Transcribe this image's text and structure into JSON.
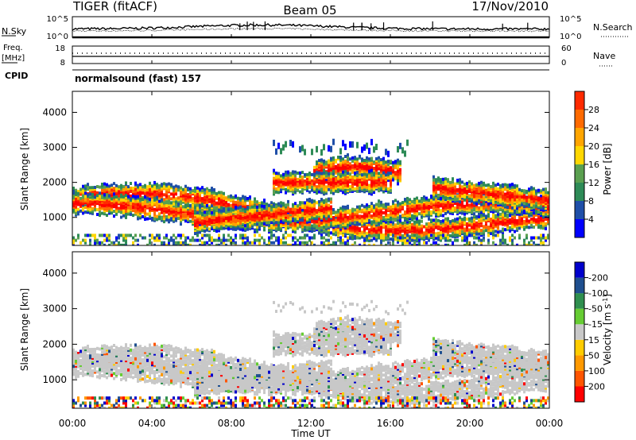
{
  "header": {
    "station": "TIGER (fitACF)",
    "beam": "Beam 05",
    "date": "17/Nov/2010"
  },
  "panels": {
    "nsky_label": "N.Sky",
    "nsky_ticks": [
      "10^5",
      "10^0"
    ],
    "nsearch_label": "N.Search",
    "nsearch_ticks": [
      "10^5",
      "10^0"
    ],
    "freq_label": "Freq.",
    "freq_unit": "[MHz]",
    "freq_ticks": [
      "18",
      "8"
    ],
    "nave_label": "Nave",
    "nave_ticks": [
      "60",
      "0"
    ],
    "cpid_label": "CPID",
    "cpid_value": "normalsound (fast) 157"
  },
  "colors": {
    "power": [
      "#0000ff",
      "#1f4fa8",
      "#2e8b57",
      "#5aa050",
      "#ffd700",
      "#ffa500",
      "#ff6a00",
      "#ff2a00",
      "#ff0000"
    ],
    "velocity": [
      "#0000cc",
      "#1f4f8f",
      "#2f8f4f",
      "#66cc33",
      "#c8c8c8",
      "#ffcc00",
      "#ff9900",
      "#ff5500",
      "#ff0000"
    ],
    "gray": "#c8c8c8"
  },
  "chart_data": [
    {
      "type": "line",
      "title": "N.Sky / N.Search",
      "ylim_label": [
        "10^0",
        "10^5"
      ],
      "series": [
        {
          "name": "N.Sky"
        },
        {
          "name": "N.Search"
        }
      ]
    },
    {
      "type": "line",
      "series": [
        {
          "name": "Freq. [MHz]",
          "ylim": [
            8,
            18
          ]
        },
        {
          "name": "Nave",
          "ylim": [
            0,
            60
          ]
        }
      ]
    },
    {
      "type": "heatmap",
      "quantity": "Power [dB]",
      "ylabel": "Slant Range [km]",
      "yticks": [
        1000,
        2000,
        3000,
        4000
      ],
      "ylim": [
        200,
        4600
      ],
      "colorbar_ticks": [
        4,
        8,
        12,
        16,
        20,
        24,
        28
      ],
      "colorbar_range": [
        0,
        30
      ]
    },
    {
      "type": "heatmap",
      "quantity": "Velocity [m s^-1]",
      "ylabel": "Slant Range [km]",
      "yticks": [
        1000,
        2000,
        3000,
        4000
      ],
      "ylim": [
        200,
        4600
      ],
      "colorbar_ticks": [
        -200,
        -100,
        -50,
        -15,
        15,
        50,
        100,
        200
      ]
    }
  ],
  "time_axis": {
    "label": "Time UT",
    "ticks": [
      "00:00",
      "04:00",
      "08:00",
      "12:00",
      "16:00",
      "20:00",
      "00:00"
    ]
  },
  "colorbar": {
    "power_label": "Power [dB]",
    "velocity_label": "Velocity",
    "velocity_unit": "[m s",
    "velocity_unit_sup": "-1",
    "velocity_unit_close": "]"
  }
}
